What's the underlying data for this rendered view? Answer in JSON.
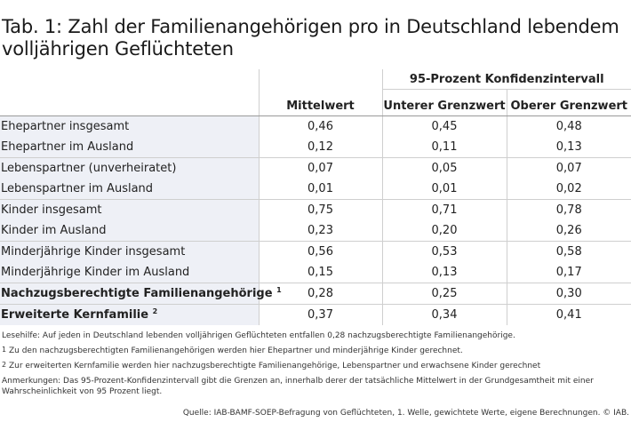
{
  "title": "Tab. 1: Zahl der Familienangehörigen pro in Deutschland lebendem volljährigen Geflüchteten",
  "table": {
    "group_header": "95-Prozent Konfidenzintervall",
    "columns": [
      "Mittelwert",
      "Unterer Grenzwert",
      "Oberer Grenzwert"
    ],
    "rows": [
      {
        "label": "Ehepartner insgesamt",
        "sup": "",
        "values": [
          "0,46",
          "0,45",
          "0,48"
        ]
      },
      {
        "label": "Ehepartner im Ausland",
        "sup": "",
        "values": [
          "0,12",
          "0,11",
          "0,13"
        ]
      },
      {
        "label": "Lebenspartner (unverheiratet)",
        "sup": "",
        "values": [
          "0,07",
          "0,05",
          "0,07"
        ]
      },
      {
        "label": "Lebenspartner im Ausland",
        "sup": "",
        "values": [
          "0,01",
          "0,01",
          "0,02"
        ]
      },
      {
        "label": "Kinder insgesamt",
        "sup": "",
        "values": [
          "0,75",
          "0,71",
          "0,78"
        ]
      },
      {
        "label": "Kinder im Ausland",
        "sup": "",
        "values": [
          "0,23",
          "0,20",
          "0,26"
        ]
      },
      {
        "label": "Minderjährige Kinder insgesamt",
        "sup": "",
        "values": [
          "0,56",
          "0,53",
          "0,58"
        ]
      },
      {
        "label": "Minderjährige Kinder im Ausland",
        "sup": "",
        "values": [
          "0,15",
          "0,13",
          "0,17"
        ]
      },
      {
        "label": "Nachzugsberechtigte Familienangehörige",
        "sup": "1",
        "values": [
          "0,28",
          "0,25",
          "0,30"
        ]
      },
      {
        "label": "Erweiterte Kernfamilie",
        "sup": "2",
        "values": [
          "0,37",
          "0,34",
          "0,41"
        ]
      }
    ]
  },
  "notes": {
    "lesehilfe": "Lesehilfe: Auf jeden in Deutschland lebenden volljährigen Geflüchteten entfallen 0,28 nachzugsberechtigte Familienangehörige.",
    "fn1_mark": "1",
    "fn1": "Zu den nachzugsberechtigten Familienangehörigen werden hier Ehepartner und minderjährige Kinder gerechnet.",
    "fn2_mark": "2",
    "fn2": "Zur erweiterten Kernfamilie werden hier nachzugsberechtigte Familienangehörige, Lebenspartner und erwachsene Kinder gerechnet",
    "anmerkungen": "Anmerkungen: Das 95-Prozent-Konfidenzintervall gibt die Grenzen an, innerhalb derer der tatsächliche Mittelwert in der Grundgesamtheit mit einer Wahrscheinlichkeit von 95 Prozent liegt.",
    "source": "Quelle: IAB-BAMF-SOEP-Befragung von Geflüchteten, 1. Welle, gewichtete Werte, eigene Berechnungen. © IAB."
  }
}
